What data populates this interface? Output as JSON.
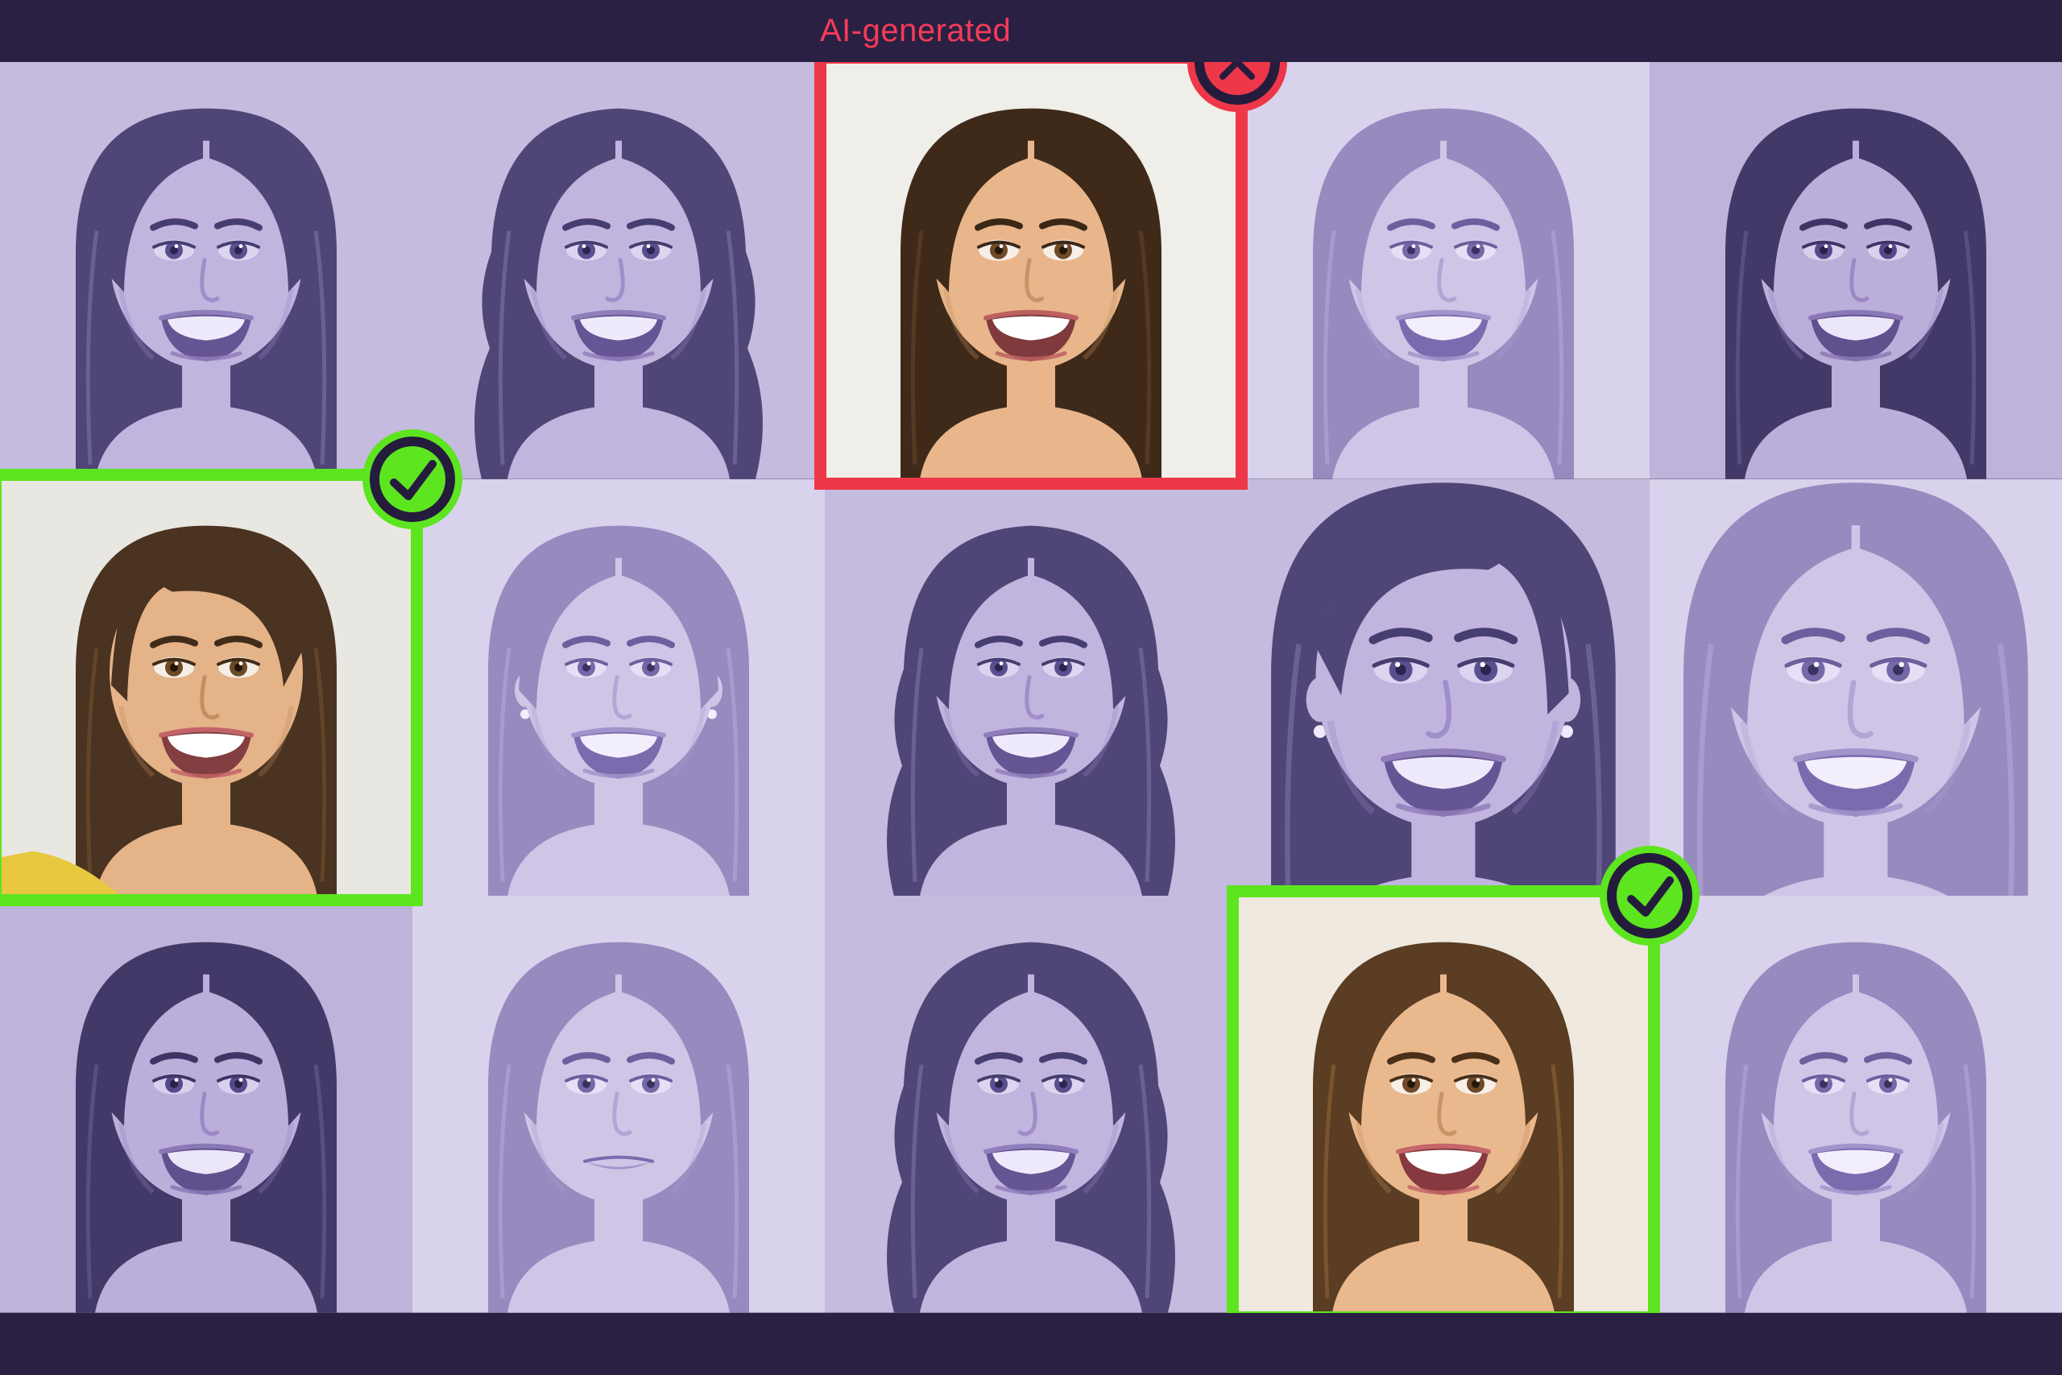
{
  "header": {
    "label": "AI-generated"
  },
  "colors": {
    "page_background": "#2a2043",
    "bar_background": "#2a2043",
    "label_red": "#f43b57",
    "flag_red": "#ee3748",
    "verify_green": "#5de51f",
    "badge_ring_dark": "#251c3d"
  },
  "icons": {
    "flagged": "x-icon",
    "verified": "check-icon"
  },
  "statuses": {
    "flagged": {
      "color": "#ee3748",
      "icon": "x"
    },
    "verified": {
      "color": "#5de51f",
      "icon": "check"
    }
  },
  "palettes": {
    "duo_med": {
      "bg": "#c5bbdf",
      "skin": "#c1b4de",
      "shade": "#9684c3",
      "hair": "#4f4677",
      "hairHi": "#857aae",
      "brow": "#463d70",
      "iris": "#5a4f8e",
      "pupil": "#2c2450",
      "lips": "#8f7eba",
      "mouth": "#655594",
      "teeth": "#efeafb",
      "eyew": "#ddd5f0"
    },
    "duo_dark": {
      "bg": "#beb3da",
      "skin": "#bcaeda",
      "shade": "#9180bf",
      "hair": "#423969",
      "hairHi": "#6f639c",
      "brow": "#3e3566",
      "iris": "#544989",
      "pupil": "#282048",
      "lips": "#8a78b6",
      "mouth": "#5f508e",
      "teeth": "#ece6f9",
      "eyew": "#d9d0ee"
    },
    "duo_light": {
      "bg": "#d9d2ec",
      "skin": "#cfc5e7",
      "shade": "#ab9cd0",
      "hair": "#968abf",
      "hairHi": "#b8aedd",
      "brow": "#6c5f9d",
      "iris": "#7568a6",
      "pupil": "#3a3162",
      "lips": "#a393cb",
      "mouth": "#7b6bae",
      "teeth": "#f3eefc",
      "eyew": "#e6dff5"
    },
    "color_a": {
      "bg": "#efeee9",
      "skin": "#e9b68c",
      "shade": "#c18a5e",
      "hair": "#3f2a1a",
      "hairHi": "#6b4a2c",
      "brow": "#3a2716",
      "iris": "#6f4a26",
      "pupil": "#241607",
      "lips": "#bc5f60",
      "mouth": "#7e3a3c",
      "teeth": "#ffffff",
      "eyew": "#f6efe7"
    },
    "color_b": {
      "bg": "#e9e7e2",
      "skin": "#e5b388",
      "shade": "#bd8558",
      "hair": "#4a3320",
      "hairHi": "#7d5631",
      "brow": "#402c19",
      "iris": "#6b4a28",
      "pupil": "#221507",
      "lips": "#c26467",
      "mouth": "#823e41",
      "teeth": "#ffffff",
      "eyew": "#f5eee6"
    },
    "color_c": {
      "bg": "#efe9e0",
      "skin": "#eab88d",
      "shade": "#c08a5c",
      "hair": "#5a3d22",
      "hairHi": "#9a6b3a",
      "brow": "#4a3018",
      "iris": "#70492a",
      "pupil": "#241708",
      "lips": "#c4666a",
      "mouth": "#86393e",
      "teeth": "#ffffff",
      "eyew": "#f7f0e8"
    }
  },
  "grid": {
    "rows": 3,
    "cols": 5,
    "cells": [
      {
        "id": "r1c1",
        "palette": "duo_med",
        "hair": "long",
        "status": null
      },
      {
        "id": "r1c2",
        "palette": "duo_med",
        "hair": "wavy",
        "flip": true,
        "status": null
      },
      {
        "id": "r1c3",
        "palette": "color_a",
        "hair": "long",
        "status": "flagged"
      },
      {
        "id": "r1c4",
        "palette": "duo_light",
        "hair": "long",
        "status": null
      },
      {
        "id": "r1c5",
        "palette": "duo_dark",
        "hair": "long",
        "status": null
      },
      {
        "id": "r2c1",
        "palette": "color_b",
        "hair": "side",
        "status": "verified",
        "garment": "#e8c83e"
      },
      {
        "id": "r2c2",
        "palette": "duo_light",
        "hair": "long",
        "earrings": true,
        "status": null
      },
      {
        "id": "r2c3",
        "palette": "duo_med",
        "hair": "wavy",
        "status": null
      },
      {
        "id": "r2c4",
        "palette": "duo_med",
        "hair": "side",
        "earrings": true,
        "close": true,
        "flip": true,
        "status": null
      },
      {
        "id": "r2c5",
        "palette": "duo_light",
        "hair": "long",
        "close": true,
        "status": null
      },
      {
        "id": "r3c1",
        "palette": "duo_dark",
        "hair": "long",
        "status": null
      },
      {
        "id": "r3c2",
        "palette": "duo_light",
        "hair": "long",
        "soft": true,
        "status": null
      },
      {
        "id": "r3c3",
        "palette": "duo_med",
        "hair": "wavy",
        "flip": true,
        "status": null
      },
      {
        "id": "r3c4",
        "palette": "color_c",
        "hair": "long",
        "status": "verified"
      },
      {
        "id": "r3c5",
        "palette": "duo_light",
        "hair": "long",
        "status": null
      }
    ]
  }
}
